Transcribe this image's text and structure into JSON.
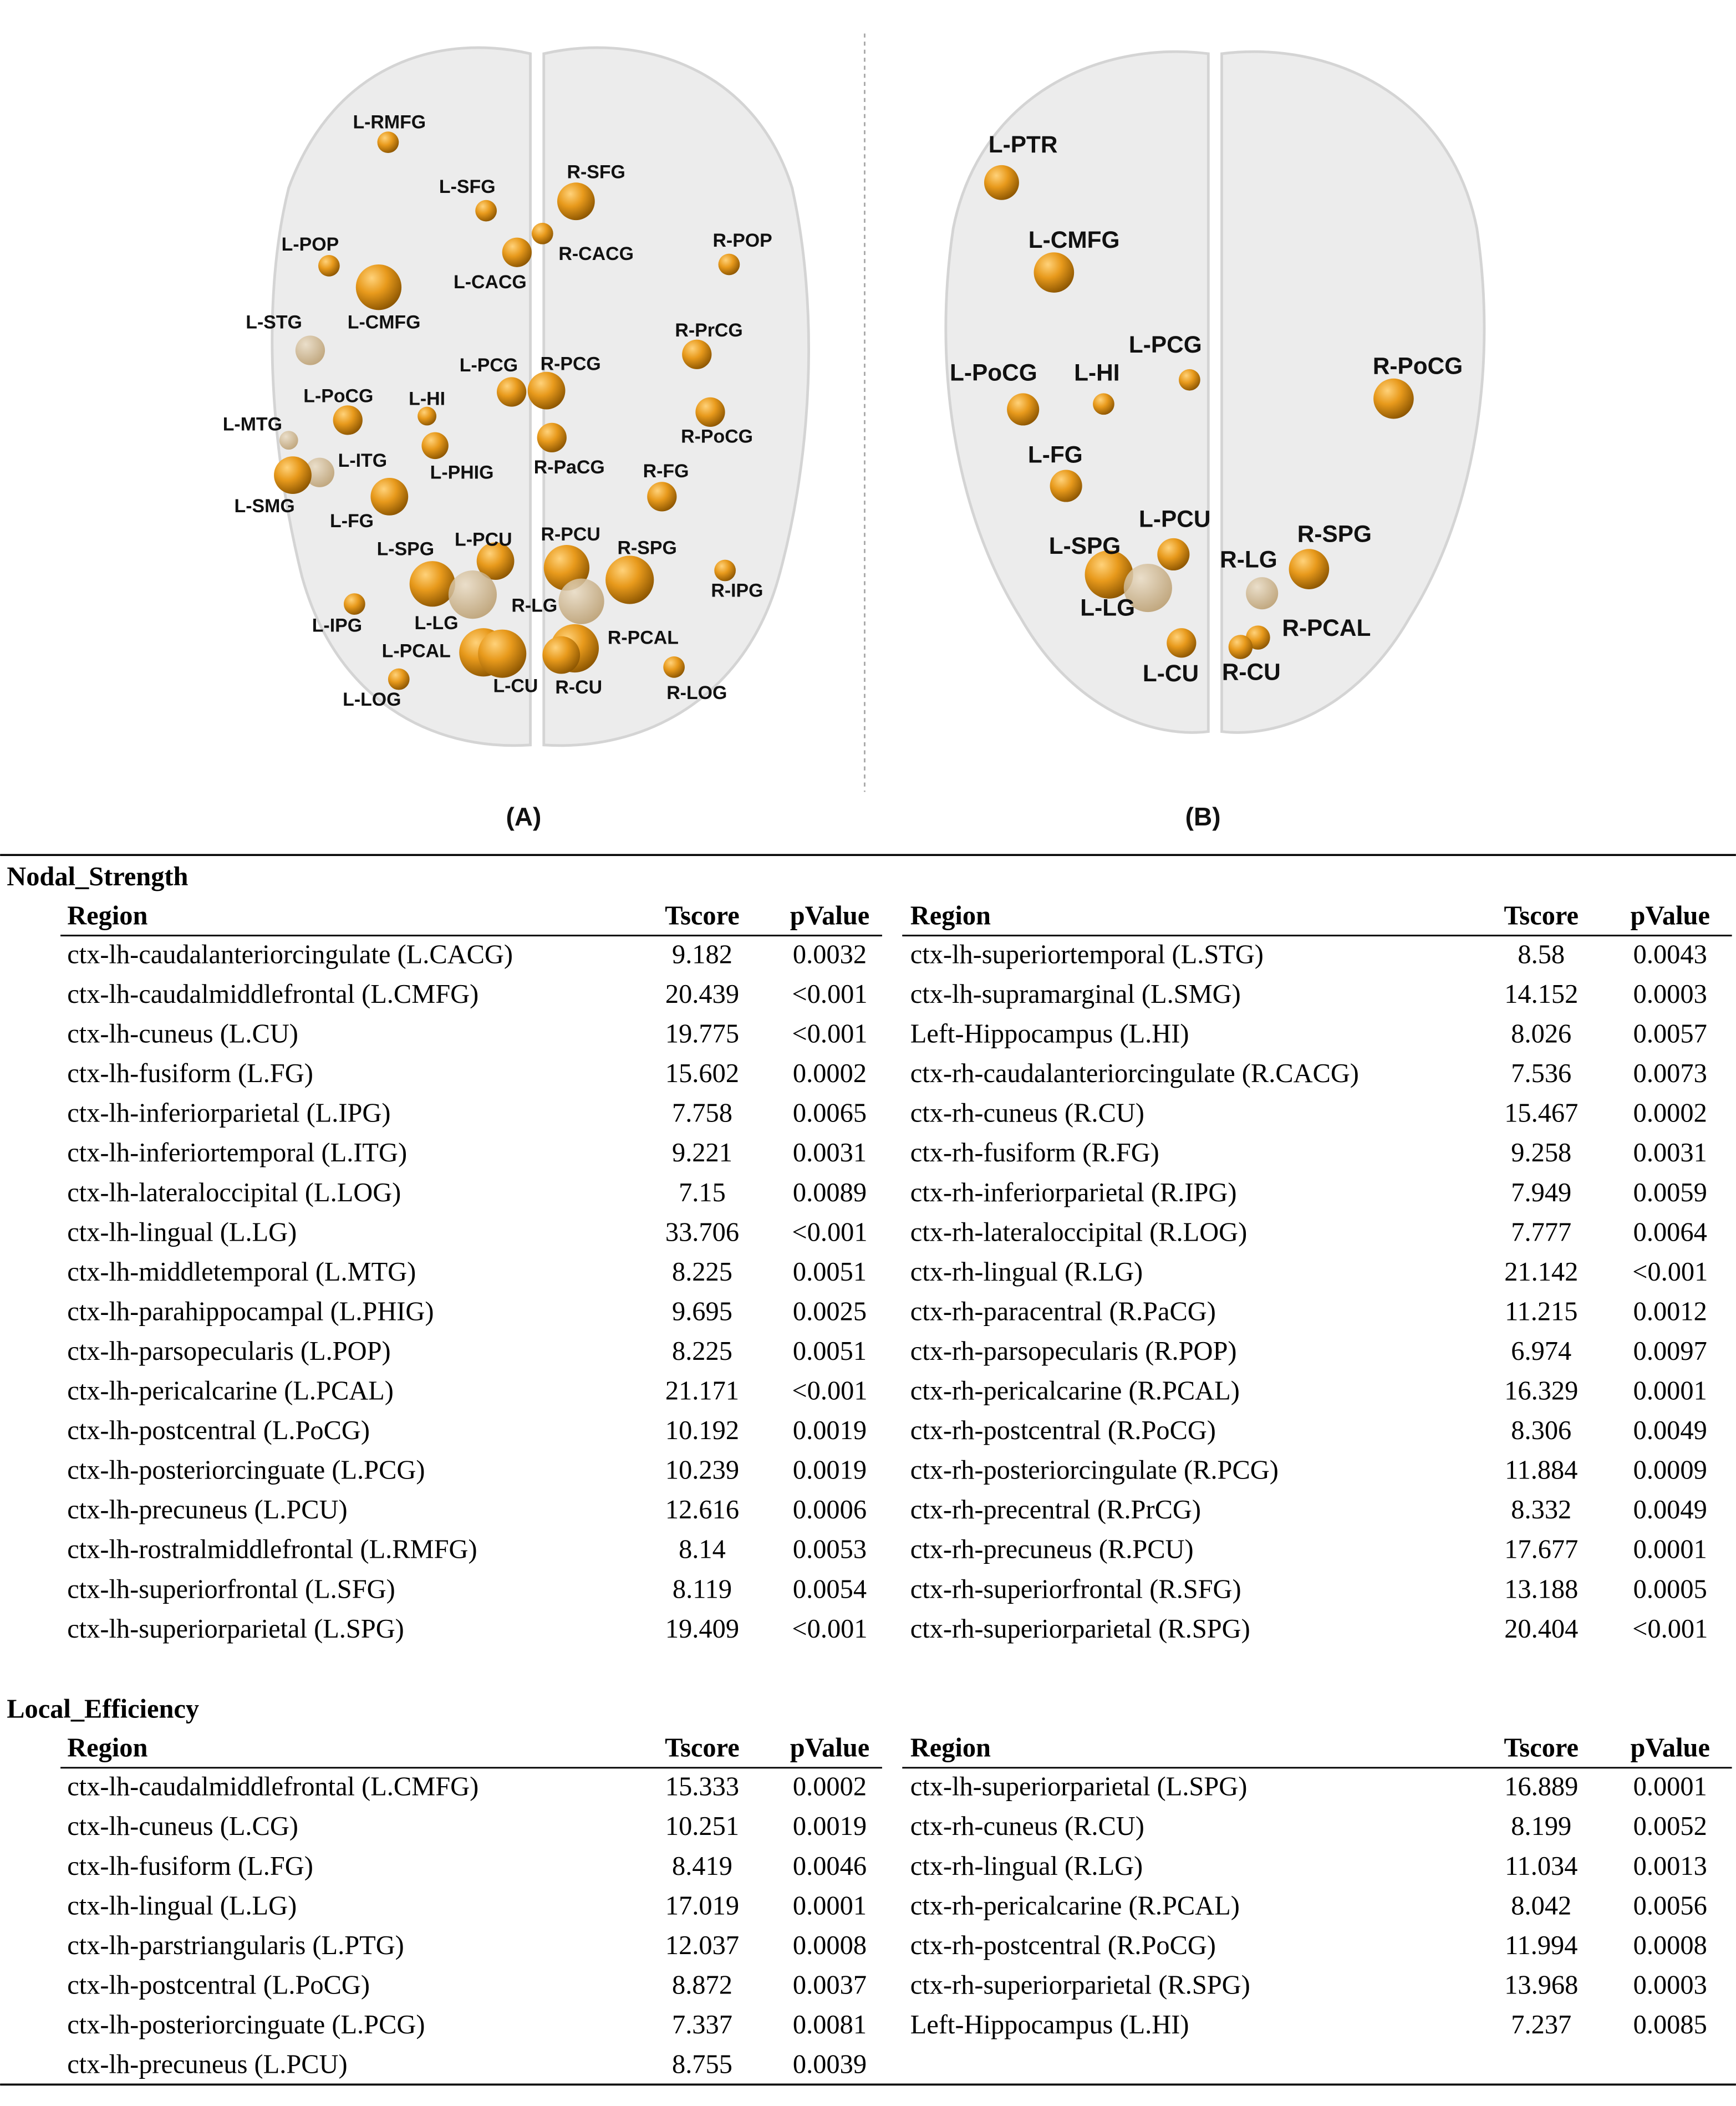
{
  "figure": {
    "panels": [
      {
        "label": "(A)",
        "nodes": [
          "L-RMFG",
          "L-SFG",
          "R-SFG",
          "L-POP",
          "R-CACG",
          "L-CACG",
          "R-POP",
          "L-STG",
          "L-CMFG",
          "R-PrCG",
          "L-PCG",
          "R-PCG",
          "L-PoCG",
          "L-HI",
          "R-PoCG",
          "L-MTG",
          "L-ITG",
          "L-PHIG",
          "R-PaCG",
          "R-FG",
          "L-SMG",
          "L-FG",
          "L-SPG",
          "L-PCU",
          "R-PCU",
          "R-SPG",
          "R-IPG",
          "R-LG",
          "L-LG",
          "L-IPG",
          "R-PCAL",
          "L-PCAL",
          "L-CU",
          "R-CU",
          "R-LOG",
          "L-LOG"
        ]
      },
      {
        "label": "(B)",
        "nodes": [
          "L-PTR",
          "L-CMFG",
          "L-PCG",
          "L-PoCG",
          "L-HI",
          "R-PoCG",
          "L-FG",
          "L-PCU",
          "L-SPG",
          "R-SPG",
          "R-LG",
          "L-LG",
          "R-PCAL",
          "L-CU",
          "R-CU"
        ]
      }
    ]
  },
  "tables": [
    {
      "title": "Nodal_Strength",
      "headers": [
        "Region",
        "Tscore",
        "pValue"
      ],
      "left": [
        {
          "region": "ctx-lh-caudalanteriorcingulate (L.CACG)",
          "tscore": 9.182,
          "pvalue": 0.0032
        },
        {
          "region": "ctx-lh-caudalmiddlefrontal (L.CMFG)",
          "tscore": 20.439,
          "pvalue": "<0.001"
        },
        {
          "region": "ctx-lh-cuneus (L.CU)",
          "tscore": 19.775,
          "pvalue": "<0.001"
        },
        {
          "region": "ctx-lh-fusiform (L.FG)",
          "tscore": 15.602,
          "pvalue": 0.0002
        },
        {
          "region": "ctx-lh-inferiorparietal (L.IPG)",
          "tscore": 7.758,
          "pvalue": 0.0065
        },
        {
          "region": "ctx-lh-inferiortemporal (L.ITG)",
          "tscore": 9.221,
          "pvalue": 0.0031
        },
        {
          "region": "ctx-lh-lateraloccipital (L.LOG)",
          "tscore": 7.15,
          "pvalue": 0.0089
        },
        {
          "region": "ctx-lh-lingual (L.LG)",
          "tscore": 33.706,
          "pvalue": "<0.001"
        },
        {
          "region": "ctx-lh-middletemporal (L.MTG)",
          "tscore": 8.225,
          "pvalue": 0.0051
        },
        {
          "region": "ctx-lh-parahippocampal (L.PHIG)",
          "tscore": 9.695,
          "pvalue": 0.0025
        },
        {
          "region": "ctx-lh-parsopecularis (L.POP)",
          "tscore": 8.225,
          "pvalue": 0.0051
        },
        {
          "region": "ctx-lh-pericalcarine (L.PCAL)",
          "tscore": 21.171,
          "pvalue": "<0.001"
        },
        {
          "region": "ctx-lh-postcentral (L.PoCG)",
          "tscore": 10.192,
          "pvalue": 0.0019
        },
        {
          "region": "ctx-lh-posteriorcinguate (L.PCG)",
          "tscore": 10.239,
          "pvalue": 0.0019
        },
        {
          "region": "ctx-lh-precuneus (L.PCU)",
          "tscore": 12.616,
          "pvalue": 0.0006
        },
        {
          "region": "ctx-lh-rostralmiddlefrontal (L.RMFG)",
          "tscore": 8.14,
          "pvalue": 0.0053
        },
        {
          "region": "ctx-lh-superiorfrontal (L.SFG)",
          "tscore": 8.119,
          "pvalue": 0.0054
        },
        {
          "region": "ctx-lh-superiorparietal (L.SPG)",
          "tscore": 19.409,
          "pvalue": "<0.001"
        }
      ],
      "right": [
        {
          "region": "ctx-lh-superiortemporal (L.STG)",
          "tscore": 8.58,
          "pvalue": 0.0043
        },
        {
          "region": "ctx-lh-supramarginal (L.SMG)",
          "tscore": 14.152,
          "pvalue": 0.0003
        },
        {
          "region": "Left-Hippocampus (L.HI)",
          "tscore": 8.026,
          "pvalue": 0.0057
        },
        {
          "region": "ctx-rh-caudalanteriorcingulate (R.CACG)",
          "tscore": 7.536,
          "pvalue": 0.0073
        },
        {
          "region": "ctx-rh-cuneus (R.CU)",
          "tscore": 15.467,
          "pvalue": 0.0002
        },
        {
          "region": "ctx-rh-fusiform (R.FG)",
          "tscore": 9.258,
          "pvalue": 0.0031
        },
        {
          "region": "ctx-rh-inferiorparietal (R.IPG)",
          "tscore": 7.949,
          "pvalue": 0.0059
        },
        {
          "region": "ctx-rh-lateraloccipital (R.LOG)",
          "tscore": 7.777,
          "pvalue": 0.0064
        },
        {
          "region": "ctx-rh-lingual (R.LG)",
          "tscore": 21.142,
          "pvalue": "<0.001"
        },
        {
          "region": "ctx-rh-paracentral (R.PaCG)",
          "tscore": 11.215,
          "pvalue": 0.0012
        },
        {
          "region": "ctx-rh-parsopecularis (R.POP)",
          "tscore": 6.974,
          "pvalue": 0.0097
        },
        {
          "region": "ctx-rh-pericalcarine (R.PCAL)",
          "tscore": 16.329,
          "pvalue": 0.0001
        },
        {
          "region": "ctx-rh-postcentral (R.PoCG)",
          "tscore": 8.306,
          "pvalue": 0.0049
        },
        {
          "region": "ctx-rh-posteriorcingulate (R.PCG)",
          "tscore": 11.884,
          "pvalue": 0.0009
        },
        {
          "region": "ctx-rh-precentral (R.PrCG)",
          "tscore": 8.332,
          "pvalue": 0.0049
        },
        {
          "region": "ctx-rh-precuneus (R.PCU)",
          "tscore": 17.677,
          "pvalue": 0.0001
        },
        {
          "region": "ctx-rh-superiorfrontal (R.SFG)",
          "tscore": 13.188,
          "pvalue": 0.0005
        },
        {
          "region": "ctx-rh-superiorparietal (R.SPG)",
          "tscore": 20.404,
          "pvalue": "<0.001"
        }
      ]
    },
    {
      "title": "Local_Efficiency",
      "headers": [
        "Region",
        "Tscore",
        "pValue"
      ],
      "left": [
        {
          "region": "ctx-lh-caudalmiddlefrontal (L.CMFG)",
          "tscore": 15.333,
          "pvalue": 0.0002
        },
        {
          "region": "ctx-lh-cuneus (L.CG)",
          "tscore": 10.251,
          "pvalue": 0.0019
        },
        {
          "region": "ctx-lh-fusiform (L.FG)",
          "tscore": 8.419,
          "pvalue": 0.0046
        },
        {
          "region": "ctx-lh-lingual (L.LG)",
          "tscore": 17.019,
          "pvalue": 0.0001
        },
        {
          "region": "ctx-lh-parstriangularis (L.PTG)",
          "tscore": 12.037,
          "pvalue": 0.0008
        },
        {
          "region": "ctx-lh-postcentral (L.PoCG)",
          "tscore": 8.872,
          "pvalue": 0.0037
        },
        {
          "region": "ctx-lh-posteriorcinguate (L.PCG)",
          "tscore": 7.337,
          "pvalue": 0.0081
        },
        {
          "region": "ctx-lh-precuneus (L.PCU)",
          "tscore": 8.755,
          "pvalue": 0.0039
        }
      ],
      "right": [
        {
          "region": "ctx-lh-superiorparietal (L.SPG)",
          "tscore": 16.889,
          "pvalue": 0.0001
        },
        {
          "region": "ctx-rh-cuneus (R.CU)",
          "tscore": 8.199,
          "pvalue": 0.0052
        },
        {
          "region": "ctx-rh-lingual (R.LG)",
          "tscore": 11.034,
          "pvalue": 0.0013
        },
        {
          "region": "ctx-rh-pericalcarine (R.PCAL)",
          "tscore": 8.042,
          "pvalue": 0.0056
        },
        {
          "region": "ctx-rh-postcentral (R.PoCG)",
          "tscore": 11.994,
          "pvalue": 0.0008
        },
        {
          "region": "ctx-rh-superiorparietal (R.SPG)",
          "tscore": 13.968,
          "pvalue": 0.0003
        },
        {
          "region": "Left-Hippocampus (L.HI)",
          "tscore": 7.237,
          "pvalue": 0.0085
        }
      ]
    }
  ]
}
